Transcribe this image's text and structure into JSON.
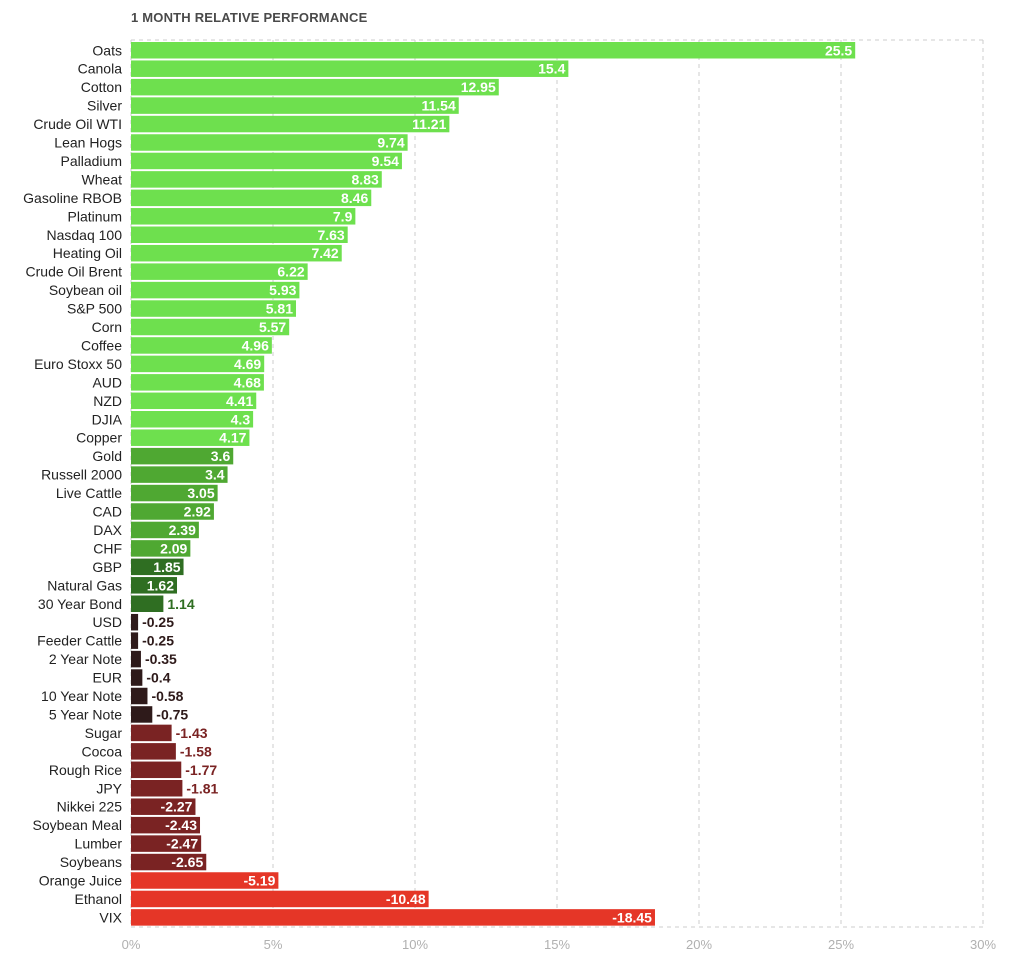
{
  "chart_data": {
    "type": "bar",
    "orientation": "horizontal",
    "title": "1 MONTH RELATIVE PERFORMANCE",
    "xlabel": "",
    "ylabel": "",
    "xlim": [
      0,
      30
    ],
    "grid": true,
    "x_ticks": [
      "0%",
      "5%",
      "10%",
      "15%",
      "20%",
      "25%",
      "30%"
    ],
    "categories": [
      "Oats",
      "Canola",
      "Cotton",
      "Silver",
      "Crude Oil WTI",
      "Lean Hogs",
      "Palladium",
      "Wheat",
      "Gasoline RBOB",
      "Platinum",
      "Nasdaq 100",
      "Heating Oil",
      "Crude Oil Brent",
      "Soybean oil",
      "S&P 500",
      "Corn",
      "Coffee",
      "Euro Stoxx 50",
      "AUD",
      "NZD",
      "DJIA",
      "Copper",
      "Gold",
      "Russell 2000",
      "Live Cattle",
      "CAD",
      "DAX",
      "CHF",
      "GBP",
      "Natural Gas",
      "30 Year Bond",
      "USD",
      "Feeder Cattle",
      "2 Year Note",
      "EUR",
      "10 Year Note",
      "5 Year Note",
      "Sugar",
      "Cocoa",
      "Rough Rice",
      "JPY",
      "Nikkei 225",
      "Soybean Meal",
      "Lumber",
      "Soybeans",
      "Orange Juice",
      "Ethanol",
      "VIX"
    ],
    "values": [
      25.5,
      15.4,
      12.95,
      11.54,
      11.21,
      9.74,
      9.54,
      8.83,
      8.46,
      7.9,
      7.63,
      7.42,
      6.22,
      5.93,
      5.81,
      5.57,
      4.96,
      4.69,
      4.68,
      4.41,
      4.3,
      4.17,
      3.6,
      3.4,
      3.05,
      2.92,
      2.39,
      2.09,
      1.85,
      1.62,
      1.14,
      -0.25,
      -0.25,
      -0.35,
      -0.4,
      -0.58,
      -0.75,
      -1.43,
      -1.58,
      -1.77,
      -1.81,
      -2.27,
      -2.43,
      -2.47,
      -2.65,
      -5.19,
      -10.48,
      -18.45
    ],
    "value_labels": [
      "25.5",
      "15.4",
      "12.95",
      "11.54",
      "11.21",
      "9.74",
      "9.54",
      "8.83",
      "8.46",
      "7.9",
      "7.63",
      "7.42",
      "6.22",
      "5.93",
      "5.81",
      "5.57",
      "4.96",
      "4.69",
      "4.68",
      "4.41",
      "4.3",
      "4.17",
      "3.6",
      "3.4",
      "3.05",
      "2.92",
      "2.39",
      "2.09",
      "1.85",
      "1.62",
      "1.14",
      "-0.25",
      "-0.25",
      "-0.35",
      "-0.4",
      "-0.58",
      "-0.75",
      "-1.43",
      "-1.58",
      "-1.77",
      "-1.81",
      "-2.27",
      "-2.43",
      "-2.47",
      "-2.65",
      "-5.19",
      "-10.48",
      "-18.45"
    ],
    "colors": {
      "strong_positive": "#6ee04e",
      "mid_positive": "#4fa832",
      "weak_positive": "#2f6e22",
      "weak_negative": "#2e1a1a",
      "mid_negative": "#7a2323",
      "strong_negative": "#e53627",
      "grid": "#cccccc"
    }
  }
}
